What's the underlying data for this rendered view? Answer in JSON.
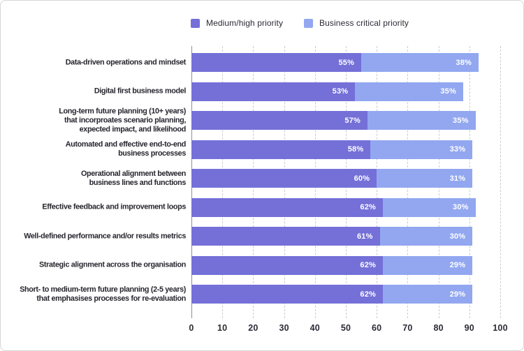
{
  "colors": {
    "series_medium_high": "#7470d8",
    "series_business_critical": "#92a7f0",
    "bar_value_text": "#ffffff",
    "category_text": "#26262e",
    "tick_text": "#2b2b35",
    "gridline": "#cbcbcb",
    "zero_axis": "#8f8f8f",
    "frame_border": "#d6d6d6",
    "background": "#ffffff"
  },
  "chart_data": {
    "type": "bar",
    "orientation": "horizontal",
    "stacked": true,
    "title": "",
    "xlabel": "",
    "ylabel": "",
    "xlim": [
      0,
      100
    ],
    "x_ticks": [
      "0",
      "10",
      "20",
      "30",
      "40",
      "50",
      "60",
      "70",
      "80",
      "90",
      "100"
    ],
    "grid": "dashed-vertical",
    "legend_position": "top",
    "value_suffix": "%",
    "categories": [
      "Data-driven operations and mindset",
      "Digital first business model",
      "Long-term future planning (10+ years)\nthat incorproates scenario planning,\nexpected impact, and likelihood",
      "Automated and effective end-to-end\nbusiness processes",
      "Operational alignment between\nbusiness lines and functions",
      "Effective feedback and improvement loops",
      "Well-defined performance and/or results metrics",
      "Strategic alignment across the organisation",
      "Short- to medium-term future planning (2-5 years)\nthat emphasises processes for re-evaluation"
    ],
    "series": [
      {
        "name": "Medium/high priority",
        "color": "#7470d8",
        "values": [
          55,
          53,
          57,
          58,
          60,
          62,
          61,
          62,
          62
        ]
      },
      {
        "name": "Business critical priority",
        "color": "#92a7f0",
        "values": [
          38,
          35,
          35,
          33,
          31,
          30,
          30,
          29,
          29
        ]
      }
    ]
  }
}
